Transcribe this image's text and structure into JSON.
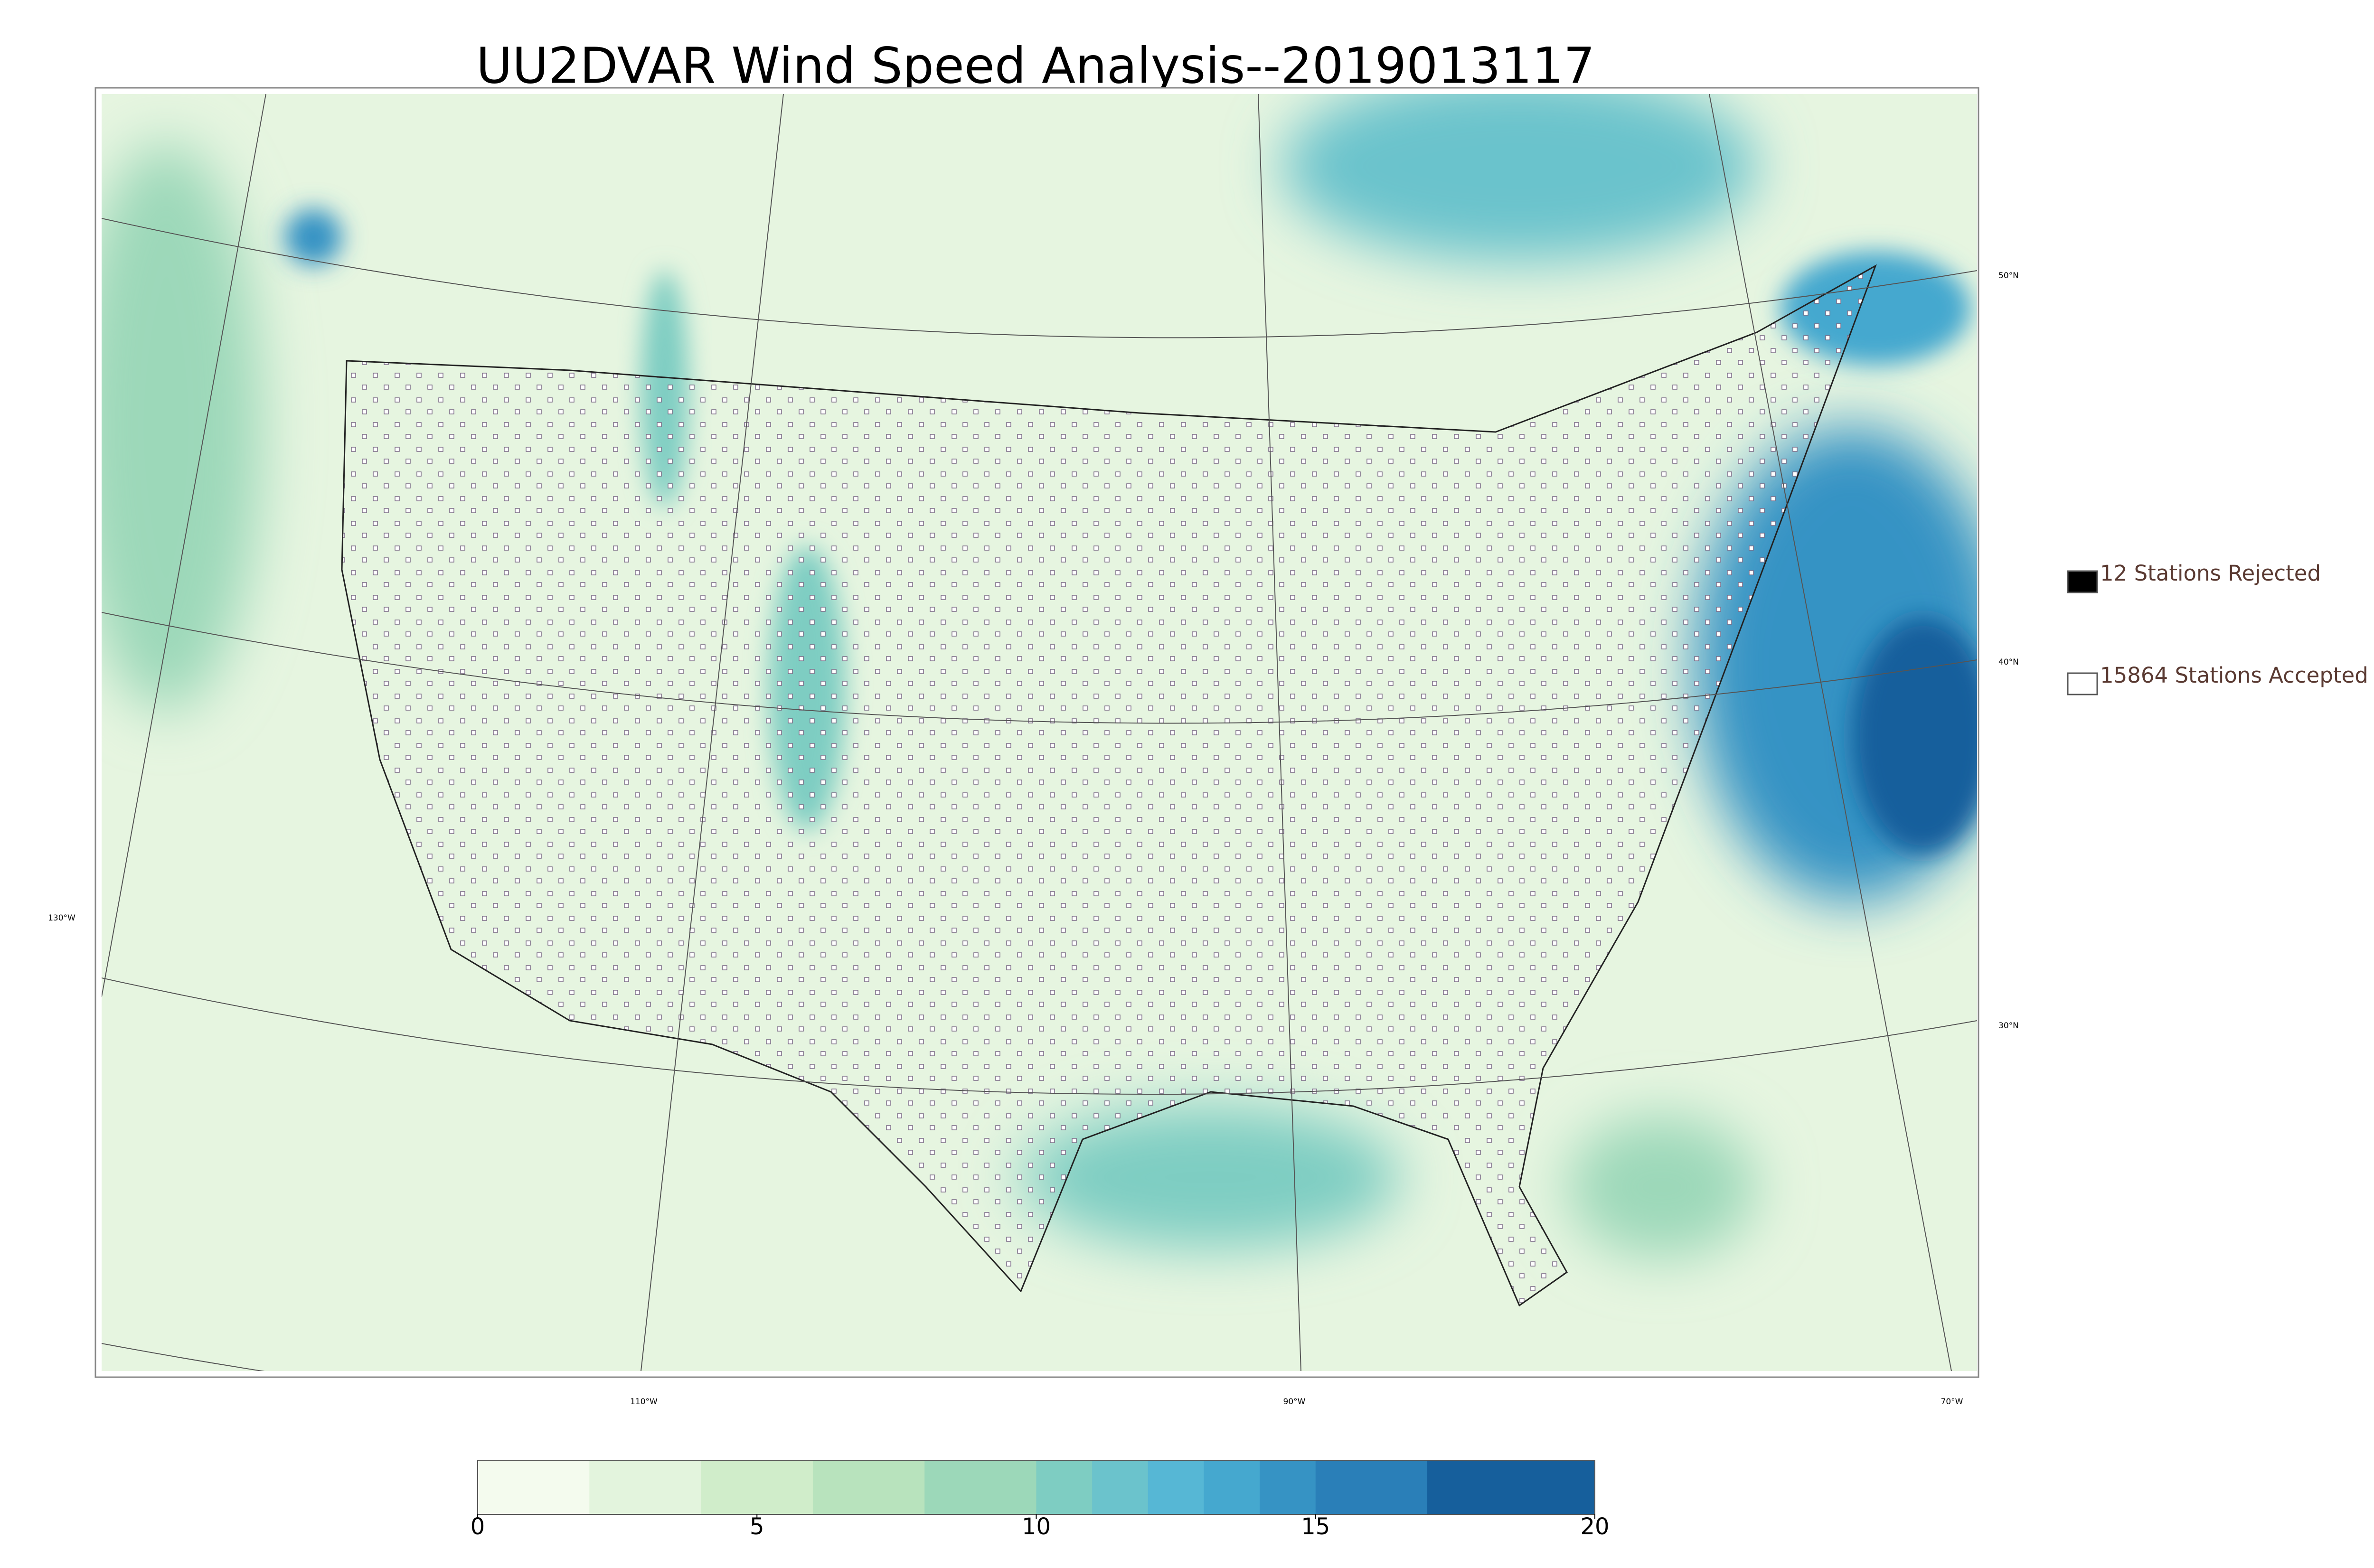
{
  "title": "UU2DVAR Wind Speed Analysis--2019013117",
  "legend": [
    {
      "label": "12 Stations Rejected",
      "fill": "#000000"
    },
    {
      "label": "15864 Stations Accepted",
      "fill": "#ffffff"
    }
  ],
  "graticule": {
    "lat_labels": [
      "50°N",
      "40°N",
      "30°N"
    ],
    "lon_labels": [
      "130°W",
      "110°W",
      "90°W",
      "70°W"
    ]
  },
  "colorbar": {
    "lim": [
      0,
      20
    ],
    "ticks": [
      0,
      5,
      10,
      15,
      20
    ],
    "levels": [
      0,
      2,
      4,
      6,
      8,
      10,
      11,
      12,
      13,
      14,
      15,
      17,
      20
    ],
    "colors": [
      "#f4fbee",
      "#e3f4dd",
      "#d0edca",
      "#b8e3bd",
      "#9cd8b9",
      "#7ecdc2",
      "#6bc3cc",
      "#56b7d5",
      "#45a8cf",
      "#3693c4",
      "#2a7fb8",
      "#165f9c"
    ]
  }
}
